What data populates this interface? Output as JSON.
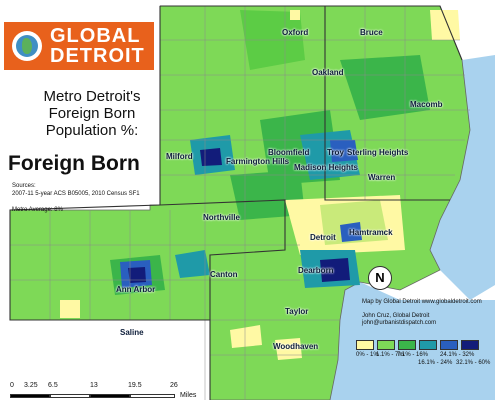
{
  "logo": {
    "line1": "GLOBAL",
    "line2": "DETROIT"
  },
  "title_lines": [
    "Metro Detroit's",
    "Foreign Born",
    "Population %:"
  ],
  "layer_title": "Foreign Born",
  "sources": {
    "label": "Sources:",
    "text": "2007-11 5-year ACS B05005, 2010 Census SF1"
  },
  "metro_average": "Metro Average: 8%",
  "places": [
    "Oxford",
    "Bruce",
    "Oakland",
    "Macomb",
    "Milford",
    "Bloomfield",
    "Troy",
    "Sterling Heights",
    "Farmington Hills",
    "Madison Heights",
    "Warren",
    "Northville",
    "Detroit",
    "Hamtramck",
    "Ann Arbor",
    "Canton",
    "Dearborn",
    "Taylor",
    "Saline",
    "Woodhaven"
  ],
  "credit": {
    "line1": "Map by Global Detroit  www.globaldetroit.com",
    "line2": "John Cruz, Global Detroit",
    "line3": "john@urbanistdispatch.com"
  },
  "north_label": "N",
  "legend": [
    {
      "label": "0% - 1%",
      "color": "#fff9a4"
    },
    {
      "label": "1.1% - 7%",
      "color": "#7ed957"
    },
    {
      "label": "7.1% - 16%",
      "color": "#3bb54a"
    },
    {
      "label": "16.1% - 24%",
      "color": "#1f9aa8"
    },
    {
      "label": "24.1% - 32%",
      "color": "#2a5fbf"
    },
    {
      "label": "32.1% - 60%",
      "color": "#121c7a"
    }
  ],
  "scale": {
    "ticks": [
      "0",
      "3.25",
      "6.5",
      "13",
      "19.5",
      "26"
    ],
    "unit": "Miles"
  },
  "colors": {
    "lake": "#a9d2ee",
    "base_green": "#7ed957",
    "logo_orange": "#e8611c"
  }
}
